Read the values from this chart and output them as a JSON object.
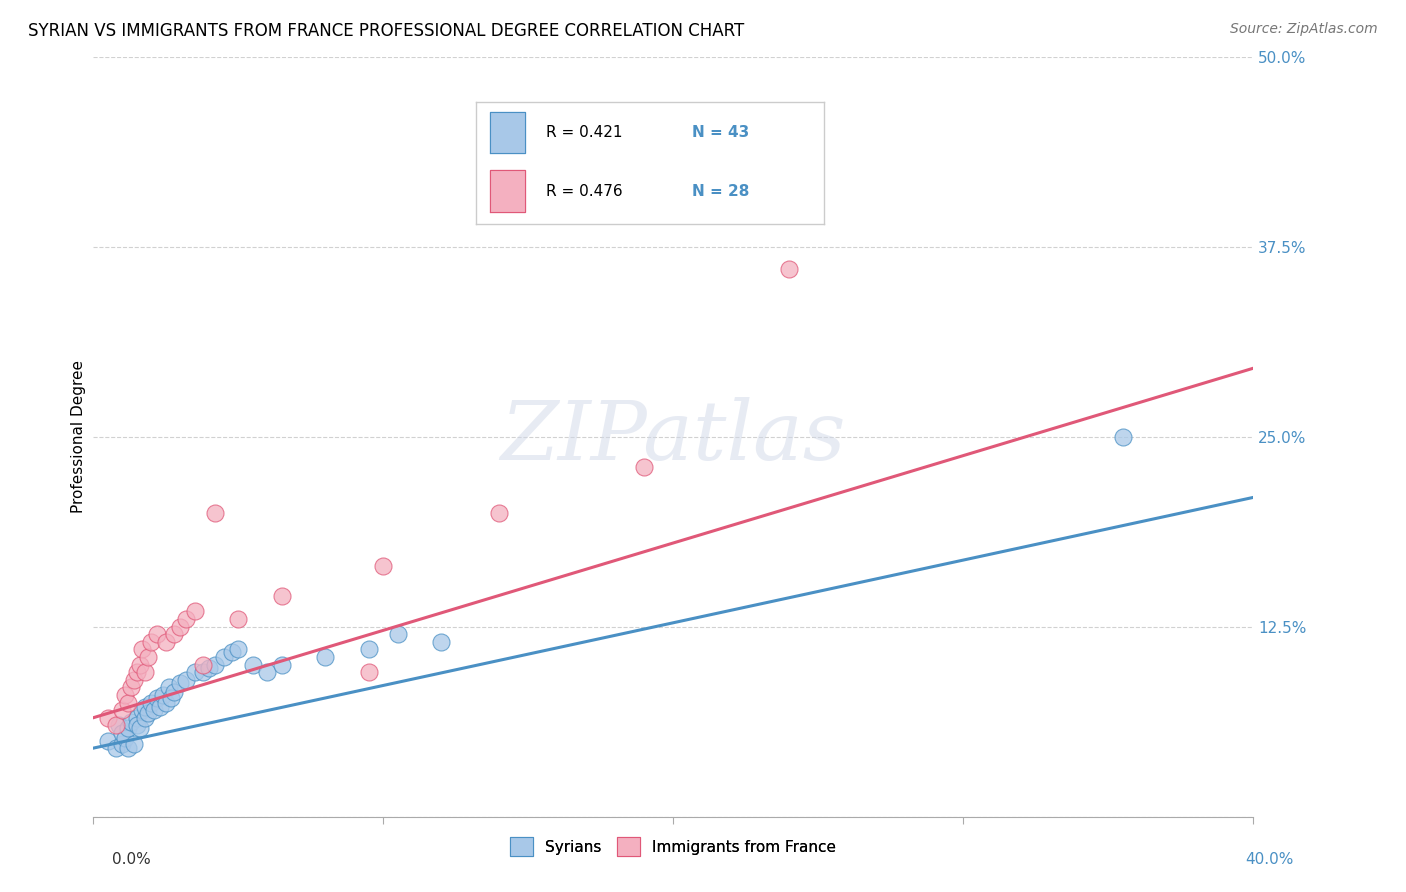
{
  "title": "SYRIAN VS IMMIGRANTS FROM FRANCE PROFESSIONAL DEGREE CORRELATION CHART",
  "source": "Source: ZipAtlas.com",
  "ylabel": "Professional Degree",
  "xlim": [
    0.0,
    0.4
  ],
  "ylim": [
    0.0,
    0.5
  ],
  "yticks": [
    0.0,
    0.125,
    0.25,
    0.375,
    0.5
  ],
  "ytick_labels": [
    "",
    "12.5%",
    "25.0%",
    "37.5%",
    "50.0%"
  ],
  "blue_color": "#a8c8e8",
  "pink_color": "#f4b0c0",
  "blue_line_color": "#4a90c4",
  "pink_line_color": "#e05878",
  "legend_R1": "R = 0.421",
  "legend_N1": "N = 43",
  "legend_R2": "R = 0.476",
  "legend_N2": "N = 28",
  "legend_label1": "Syrians",
  "legend_label2": "Immigrants from France",
  "title_fontsize": 12,
  "source_fontsize": 10,
  "axis_label_fontsize": 11,
  "tick_fontsize": 11,
  "legend_fontsize": 11,
  "background_color": "#ffffff",
  "grid_color": "#cccccc",
  "blue_scatter_x": [
    0.005,
    0.008,
    0.009,
    0.01,
    0.01,
    0.011,
    0.012,
    0.012,
    0.013,
    0.014,
    0.015,
    0.015,
    0.016,
    0.017,
    0.018,
    0.018,
    0.019,
    0.02,
    0.021,
    0.022,
    0.023,
    0.024,
    0.025,
    0.026,
    0.027,
    0.028,
    0.03,
    0.032,
    0.035,
    0.038,
    0.04,
    0.042,
    0.045,
    0.048,
    0.05,
    0.055,
    0.06,
    0.065,
    0.08,
    0.095,
    0.105,
    0.12,
    0.355
  ],
  "blue_scatter_y": [
    0.05,
    0.045,
    0.06,
    0.048,
    0.055,
    0.052,
    0.058,
    0.045,
    0.062,
    0.048,
    0.065,
    0.06,
    0.058,
    0.07,
    0.065,
    0.072,
    0.068,
    0.075,
    0.07,
    0.078,
    0.072,
    0.08,
    0.075,
    0.085,
    0.078,
    0.082,
    0.088,
    0.09,
    0.095,
    0.095,
    0.098,
    0.1,
    0.105,
    0.108,
    0.11,
    0.1,
    0.095,
    0.1,
    0.105,
    0.11,
    0.12,
    0.115,
    0.25
  ],
  "pink_scatter_x": [
    0.005,
    0.008,
    0.01,
    0.011,
    0.012,
    0.013,
    0.014,
    0.015,
    0.016,
    0.017,
    0.018,
    0.019,
    0.02,
    0.022,
    0.025,
    0.028,
    0.03,
    0.032,
    0.035,
    0.038,
    0.042,
    0.05,
    0.065,
    0.095,
    0.1,
    0.14,
    0.19,
    0.24
  ],
  "pink_scatter_y": [
    0.065,
    0.06,
    0.07,
    0.08,
    0.075,
    0.085,
    0.09,
    0.095,
    0.1,
    0.11,
    0.095,
    0.105,
    0.115,
    0.12,
    0.115,
    0.12,
    0.125,
    0.13,
    0.135,
    0.1,
    0.2,
    0.13,
    0.145,
    0.095,
    0.165,
    0.2,
    0.23,
    0.36
  ],
  "blue_regression_y_start": 0.045,
  "blue_regression_y_end": 0.21,
  "pink_regression_y_start": 0.065,
  "pink_regression_y_end": 0.295
}
